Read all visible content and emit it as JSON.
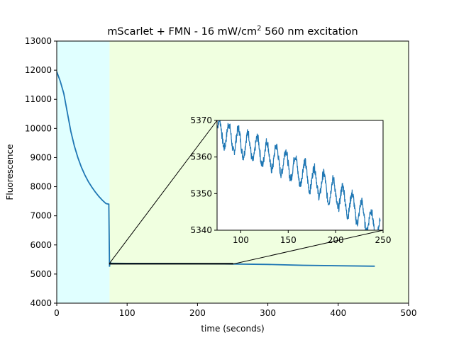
{
  "chart_data": {
    "type": "line",
    "title": "mScarlet + FMN - 16 mW/cm² 560 nm excitation",
    "title_main": "mScarlet + FMN - 16 mW/cm",
    "title_sup": "2",
    "title_rest": " 560 nm excitation",
    "xlabel": "time (seconds)",
    "ylabel": "Fluorescence",
    "xlim": [
      0,
      500
    ],
    "ylim": [
      4000,
      13000
    ],
    "xticks": [
      0,
      100,
      200,
      300,
      400,
      500
    ],
    "yticks": [
      4000,
      5000,
      6000,
      7000,
      8000,
      9000,
      10000,
      11000,
      12000,
      13000
    ],
    "grid": false,
    "line_color": "#1f77b4",
    "regions": [
      {
        "x0": 0,
        "x1": 75,
        "color": "#e0ffff"
      },
      {
        "x0": 75,
        "x1": 500,
        "color": "#f0ffe0"
      }
    ],
    "series": [
      {
        "x": [
          0,
          5,
          10,
          15,
          20,
          25,
          30,
          35,
          40,
          45,
          50,
          55,
          60,
          65,
          70,
          74,
          75,
          75.5,
          76,
          78,
          80,
          100,
          150,
          200,
          250,
          300,
          350,
          400,
          452
        ],
        "y": [
          11950,
          11620,
          11200,
          10550,
          9900,
          9400,
          9000,
          8670,
          8400,
          8170,
          7980,
          7810,
          7660,
          7530,
          7420,
          7400,
          5250,
          5400,
          5380,
          5370,
          5369,
          5366,
          5363,
          5356,
          5345,
          5330,
          5300,
          5285,
          5270
        ]
      }
    ],
    "inset": {
      "xlim": [
        75,
        250
      ],
      "ylim": [
        5340,
        5370
      ],
      "xticks": [
        100,
        150,
        200,
        250
      ],
      "yticks": [
        5340,
        5350,
        5360,
        5370
      ],
      "oscillation_period": 10,
      "oscillation_amplitude": 3.5,
      "trend": [
        {
          "x": 75,
          "y": 5367
        },
        {
          "x": 100,
          "y": 5364
        },
        {
          "x": 125,
          "y": 5361
        },
        {
          "x": 150,
          "y": 5358
        },
        {
          "x": 175,
          "y": 5354
        },
        {
          "x": 200,
          "y": 5350
        },
        {
          "x": 225,
          "y": 5345
        },
        {
          "x": 245,
          "y": 5340
        }
      ],
      "zoom_region": {
        "x0": 75,
        "x1": 250,
        "y0": 5340,
        "y1": 5370
      }
    }
  }
}
